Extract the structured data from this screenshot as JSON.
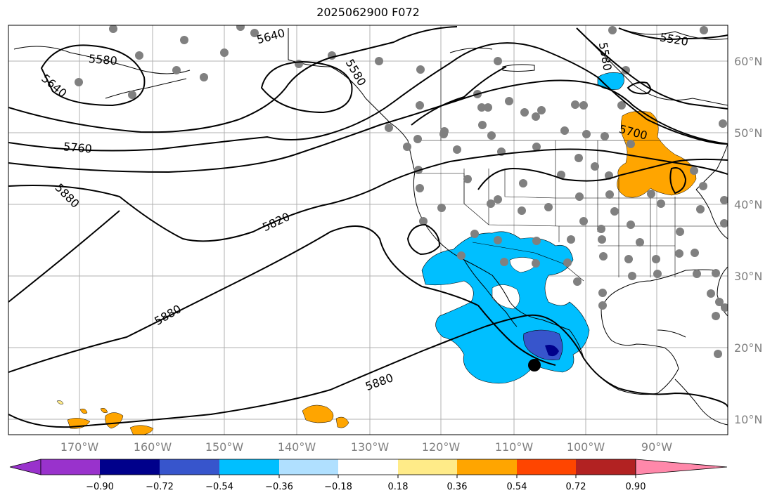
{
  "title": "2025062900 F072",
  "lat_labels": [
    "60°N",
    "50°N",
    "40°N",
    "30°N",
    "20°N",
    "10°N"
  ],
  "lon_labels": [
    "170°W",
    "160°W",
    "150°W",
    "140°W",
    "130°W",
    "120°W",
    "110°W",
    "100°W",
    "90°W"
  ],
  "contour_labels": [
    "5640",
    "5580",
    "5640",
    "5580",
    "5520",
    "5580",
    "5760",
    "5700",
    "5880",
    "5820",
    "5880",
    "5880"
  ],
  "colorbar": {
    "colors": [
      "#9932cc",
      "#00008b",
      "#3755cc",
      "#00bfff",
      "#b0e0ff",
      "#ffffff",
      "#ffeb88",
      "#ffa500",
      "#ff4500",
      "#b22222",
      "#ff88aa"
    ],
    "tick_labels": [
      "−0.90",
      "−0.72",
      "−0.54",
      "−0.36",
      "−0.18",
      "0.18",
      "0.36",
      "0.54",
      "0.72",
      "0.90"
    ]
  },
  "colors": {
    "grid": "#b0b0b0",
    "station_dot": "#808080",
    "contour": "#000000"
  }
}
